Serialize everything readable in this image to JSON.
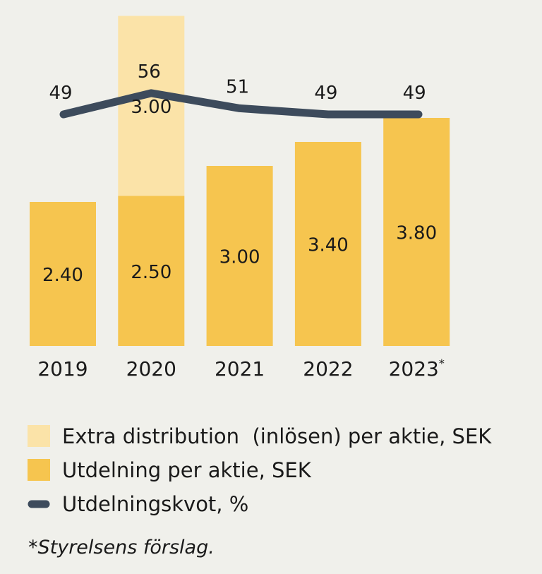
{
  "chart_data": {
    "type": "bar",
    "categories": [
      "2019",
      "2020",
      "2021",
      "2022",
      "2023*"
    ],
    "series": [
      {
        "name": "Utdelning per aktie, SEK",
        "kind": "bar",
        "values": [
          2.4,
          2.5,
          3.0,
          3.4,
          3.8
        ],
        "labels": [
          "2.40",
          "2.50",
          "3.00",
          "3.40",
          "3.80"
        ],
        "color": "#f6c54f"
      },
      {
        "name": "Extra distribution  (inlösen) per aktie, SEK",
        "kind": "bar-stacked",
        "values": [
          null,
          3.0,
          null,
          null,
          null
        ],
        "labels": [
          null,
          "3.00",
          null,
          null,
          null
        ],
        "color": "#fbe3a8"
      },
      {
        "name": "Utdelningskvot, %",
        "kind": "line",
        "values": [
          49,
          56,
          51,
          49,
          49
        ],
        "labels": [
          "49",
          "56",
          "51",
          "49",
          "49"
        ],
        "color": "#3d4b5c"
      }
    ],
    "grid": false,
    "legend_position": "bottom",
    "footnote": "*Styrelsens förslag."
  }
}
